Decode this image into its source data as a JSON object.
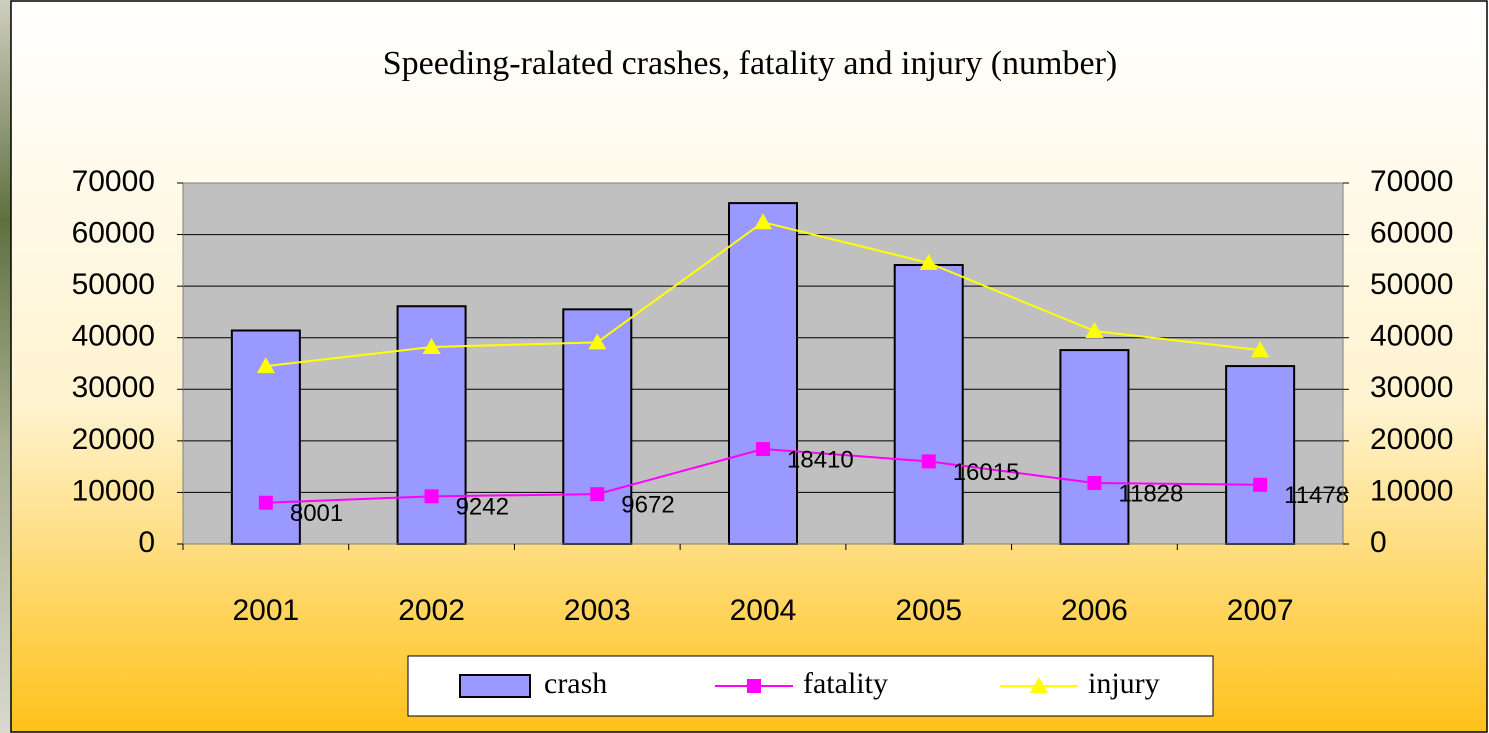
{
  "chart_data": {
    "type": "bar-line",
    "title": "Speeding-ralated crashes, fatality and injury (number)",
    "categories": [
      "2001",
      "2002",
      "2003",
      "2004",
      "2005",
      "2006",
      "2007"
    ],
    "series": [
      {
        "name": "crash",
        "type": "bar",
        "color": "#9999ff",
        "values": [
          41400,
          46100,
          45500,
          66100,
          54100,
          37600,
          34500
        ]
      },
      {
        "name": "fatality",
        "type": "line",
        "marker": "square",
        "color": "#ff00ff",
        "values": [
          8001,
          9242,
          9672,
          18410,
          16015,
          11828,
          11478
        ],
        "data_labels": true
      },
      {
        "name": "injury",
        "type": "line",
        "marker": "triangle",
        "color": "#ffff00",
        "values": [
          34500,
          38200,
          39100,
          62400,
          54500,
          41300,
          37600
        ]
      }
    ],
    "ylim": [
      0,
      70000
    ],
    "yticks": [
      0,
      10000,
      20000,
      30000,
      40000,
      50000,
      60000,
      70000
    ],
    "y2lim": [
      0,
      70000
    ],
    "y2ticks": [
      0,
      10000,
      20000,
      30000,
      40000,
      50000,
      60000,
      70000
    ],
    "grid": true,
    "legend": "bottom"
  }
}
